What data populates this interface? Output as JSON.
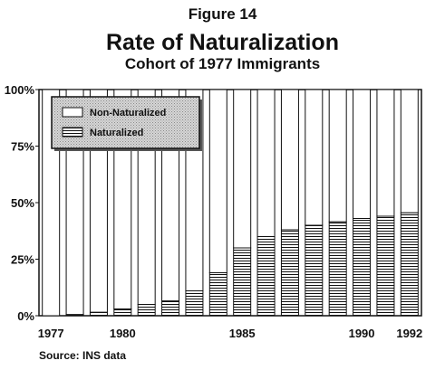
{
  "figure_label": "Figure 14",
  "title": "Rate of Naturalization",
  "subtitle": "Cohort of 1977 Immigrants",
  "source": "Source: INS data",
  "colors": {
    "naturalized_fill": "#ffffff",
    "naturalized_stripe": "#111111",
    "non_naturalized_fill": "#ffffff",
    "legend_background": "#cfcfcf",
    "border": "#111111"
  },
  "chart_data": {
    "type": "bar",
    "stacked": true,
    "percent": true,
    "categories": [
      "1977",
      "1978",
      "1979",
      "1980",
      "1981",
      "1982",
      "1983",
      "1984",
      "1985",
      "1986",
      "1987",
      "1988",
      "1989",
      "1990",
      "1991",
      "1992"
    ],
    "x_tick_labels": [
      "1977",
      "1980",
      "1985",
      "1990",
      "1992"
    ],
    "y_tick_labels": [
      "0%",
      "25%",
      "50%",
      "75%",
      "100%"
    ],
    "ylim": [
      0,
      100
    ],
    "series": [
      {
        "name": "Naturalized",
        "values": [
          0,
          0.5,
          1.5,
          3,
          5,
          6.5,
          11,
          19,
          30,
          35,
          38,
          40,
          41.5,
          43,
          44,
          45.5
        ]
      },
      {
        "name": "Non-Naturalized",
        "values": [
          100,
          99.5,
          98.5,
          97,
          95,
          93.5,
          89,
          81,
          70,
          65,
          62,
          60,
          58.5,
          57,
          56,
          54.5
        ]
      }
    ],
    "legend": {
      "placement": "top-left",
      "entries": [
        "Non-Naturalized",
        "Naturalized"
      ]
    },
    "grid": false
  }
}
